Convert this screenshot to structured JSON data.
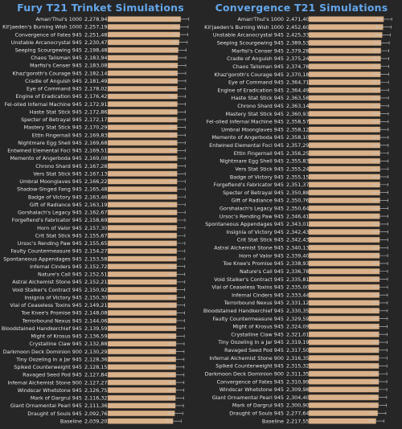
{
  "chart_data": [
    {
      "type": "bar",
      "title": "Fury T21 Trinket Simulations",
      "categories": [
        "Aman'Thul's 1000",
        "Kil'jaeden's Burning Wish 1000",
        "Convergence of Fates 945",
        "Unstable Arcanocrystal 945",
        "Seeping Scourgewing 945",
        "Chaos Talisman 945",
        "Marfisi's Censer 945",
        "Khaz'goroth's Courage 945",
        "Cradle of Anguish 945",
        "Eye of Command 945",
        "Engine of Eradication 945",
        "Fel-oiled Infernal Machine 945",
        "Haste Stat Stick 945",
        "Specter of Betrayal 945",
        "Mastery Stat Stick 945",
        "Ettin Fingernail 945",
        "Nightmare Egg Shell 945",
        "Entwined Elemental Foci 945",
        "Memento of Angerboda 945",
        "Chrono Shard 945",
        "Vers Stat Stick 945",
        "Umbral Moonglaves 945",
        "Shadow-Singed Fang 945",
        "Badge of Victory 945",
        "Gift of Radiance 945",
        "Gorshalach's Legacy 945",
        "Forgefiend's Fabricator 945",
        "Horn of Valor 945",
        "Crit Stat Stick 945",
        "Ursoc's Rending Paw 945",
        "Faulty Countermeasure 945",
        "Spontaneous Appendages 945",
        "Infernal Cinders 945",
        "Nature's Call 945",
        "Astral Alchemist Stone 945",
        "Void Stalker's Contract 945",
        "Insignia of Victory 945",
        "Vial of Ceaseless Toxins 945",
        "Toe Knee's Promise 945",
        "Terrorbound Nexus 945",
        "Bloodstained Handkerchief 945",
        "Might of Krosus 945",
        "Crystalline Claw 945",
        "Darkmoon Deck Dominion 900",
        "Tiny Oozeling in a Jar 945",
        "Spiked Counterweight 945",
        "Ravaged Seed Pod 945",
        "Infernal Alchemist Stone 900",
        "Windscar Whetstone 945",
        "Mark of Dargrul 945",
        "Giant Ornamental Pearl 945",
        "Draught of Souls 945",
        "Baseline"
      ],
      "values": [
        2278941,
        2257197,
        2251487,
        2230474,
        2198487,
        2183941,
        2183088,
        2182144,
        2181492,
        2178029,
        2176422,
        2172919,
        2172864,
        2172173,
        2170293,
        2169830,
        2169687,
        2169517,
        2169084,
        2167284,
        2167138,
        2166221,
        2165489,
        2163466,
        2163195,
        2162678,
        2158692,
        2157308,
        2155675,
        2155655,
        2154274,
        2153582,
        2152724,
        2152511,
        2152218,
        2150922,
        2150309,
        2149219,
        2148080,
        2144060,
        2139593,
        2136598,
        2132887,
        2130299,
        2128364,
        2128150,
        2127841,
        2127274,
        2126750,
        2116322,
        2111364,
        2092763,
        2039207
      ],
      "labels": [
        "2,278,941",
        "2,257,197",
        "2,251,487",
        "2,230,474",
        "2,198,487",
        "2,183,941",
        "2,183,088",
        "2,182,144",
        "2,181,492",
        "2,178,029",
        "2,176,422",
        "2,172,919",
        "2,172,864",
        "2,172,173",
        "2,170,293",
        "2,169,830",
        "2,169,687",
        "2,169,517",
        "2,169,084",
        "2,167,284",
        "2,167,138",
        "2,166,221",
        "2,165,489",
        "2,163,466",
        "2,163,195",
        "2,162,678",
        "2,158,692",
        "2,157,308",
        "2,155,675",
        "2,155,655",
        "2,154,274",
        "2,153,582",
        "2,152,724",
        "2,152,511",
        "2,152,218",
        "2,150,922",
        "2,150,309",
        "2,149,219",
        "2,148,080",
        "2,144,060",
        "2,139,593",
        "2,136,598",
        "2,132,887",
        "2,130,299",
        "2,128,364",
        "2,128,150",
        "2,127,841",
        "2,127,274",
        "2,126,750",
        "2,116,322",
        "2,111,364",
        "2,092,763",
        "2,039,207"
      ],
      "xlim": [
        0,
        2330000
      ],
      "grid": false,
      "error_bars": true
    },
    {
      "type": "bar",
      "title": "Convergence T21 Simulations",
      "categories": [
        "Aman'Thul's 1000",
        "Kil'jaeden's Burning Wish 1000",
        "Unstable Arcanocrystal 945",
        "Seeping Scourgewing 945",
        "Marfisi's Censer 945",
        "Cradle of Anguish 945",
        "Chaos Talisman 945",
        "Khaz'goroth's Courage 945",
        "Eye of Command 945",
        "Engine of Eradication 945",
        "Haste Stat Stick 945",
        "Chrono Shard 945",
        "Mastery Stat Stick 945",
        "Fel-oiled Infernal Machine 945",
        "Umbral Moonglaves 945",
        "Memento of Angerboda 945",
        "Entwined Elemental Foci 945",
        "Ettin Fingernail 945",
        "Nightmare Egg Shell 945",
        "Vers Stat Stick 945",
        "Badge of Victory 945",
        "Forgefiend's Fabricator 945",
        "Specter of Betrayal 945",
        "Gift of Radiance 945",
        "Gorshalach's Legacy 945",
        "Ursoc's Rending Paw 945",
        "Spontaneous Appendages 945",
        "Insignia of Victory 945",
        "Crit Stat Stick 945",
        "Astral Alchemist Stone 945",
        "Horn of Valor 945",
        "Toe Knee's Promise 945",
        "Nature's Call 945",
        "Void Stalker's Contract 945",
        "Vial of Ceaseless Toxins 945",
        "Infernal Cinders 945",
        "Terrorbound Nexus 945",
        "Bloodstained Handkerchief 945",
        "Faulty Countermeasure 945",
        "Might of Krosus 945",
        "Crystalline Claw 945",
        "Tiny Oozeling in a Jar 945",
        "Ravaged Seed Pod 945",
        "Infernal Alchemist Stone 900",
        "Spiked Counterweight 945",
        "Darkmoon Deck Dominion 900",
        "Convergence of Fates 945",
        "Windscar Whetstone 945",
        "Giant Ornamental Pearl 945",
        "Mark of Dargrul 945",
        "Draught of Souls 945",
        "Baseline"
      ],
      "values": [
        2471409,
        2452606,
        2425330,
        2389538,
        2379282,
        2375249,
        2374788,
        2370184,
        2364714,
        2364495,
        2363588,
        2363140,
        2360938,
        2358571,
        2358120,
        2358105,
        2357291,
        2356252,
        2355837,
        2355242,
        2355151,
        2351372,
        2350889,
        2350765,
        2350646,
        2346410,
        2343017,
        2342438,
        2342437,
        2340137,
        2339401,
        2338931,
        2336789,
        2335815,
        2335000,
        2333447,
        2331123,
        2330353,
        2329593,
        2324095,
        2321015,
        2319198,
        2317501,
        2316357,
        2315320,
        2311358,
        2310992,
        2309986,
        2304401,
        2300900,
        2277644,
        2217550
      ],
      "labels": [
        "2,471,409",
        "2,452,606",
        "2,425,330",
        "2,389,538",
        "2,379,282",
        "2,375,249",
        "2,374,788",
        "2,370,184",
        "2,364,714",
        "2,364,495",
        "2,363,588",
        "2,363,140",
        "2,360,938",
        "2,358,571",
        "2,358,120",
        "2,358,105",
        "2,357,291",
        "2,356,252",
        "2,355,837",
        "2,355,242",
        "2,355,151",
        "2,351,372",
        "2,350,889",
        "2,350,765",
        "2,350,646",
        "2,346,410",
        "2,343,017",
        "2,342,438",
        "2,342,437",
        "2,340,137",
        "2,339,401",
        "2,338,931",
        "2,336,789",
        "2,335,815",
        "2,335,000",
        "2,333,447",
        "2,331,123",
        "2,330,353",
        "2,329,593",
        "2,324,095",
        "2,321,015",
        "2,319,198",
        "2,317,501",
        "2,316,357",
        "2,315,320",
        "2,311,358",
        "2,310,992",
        "2,309,986",
        "2,304,401",
        "2,300,900",
        "2,277,644",
        "2,217,550"
      ],
      "xlim": [
        0,
        2520000
      ],
      "grid": false,
      "error_bars": true
    }
  ],
  "colors": {
    "bar": "#d9b18a",
    "bar_edge": "#8a6a4a",
    "title": "#63a6ea",
    "text": "#e6e6e6",
    "background": "#262626",
    "error_bar": "#c8c8c8"
  }
}
